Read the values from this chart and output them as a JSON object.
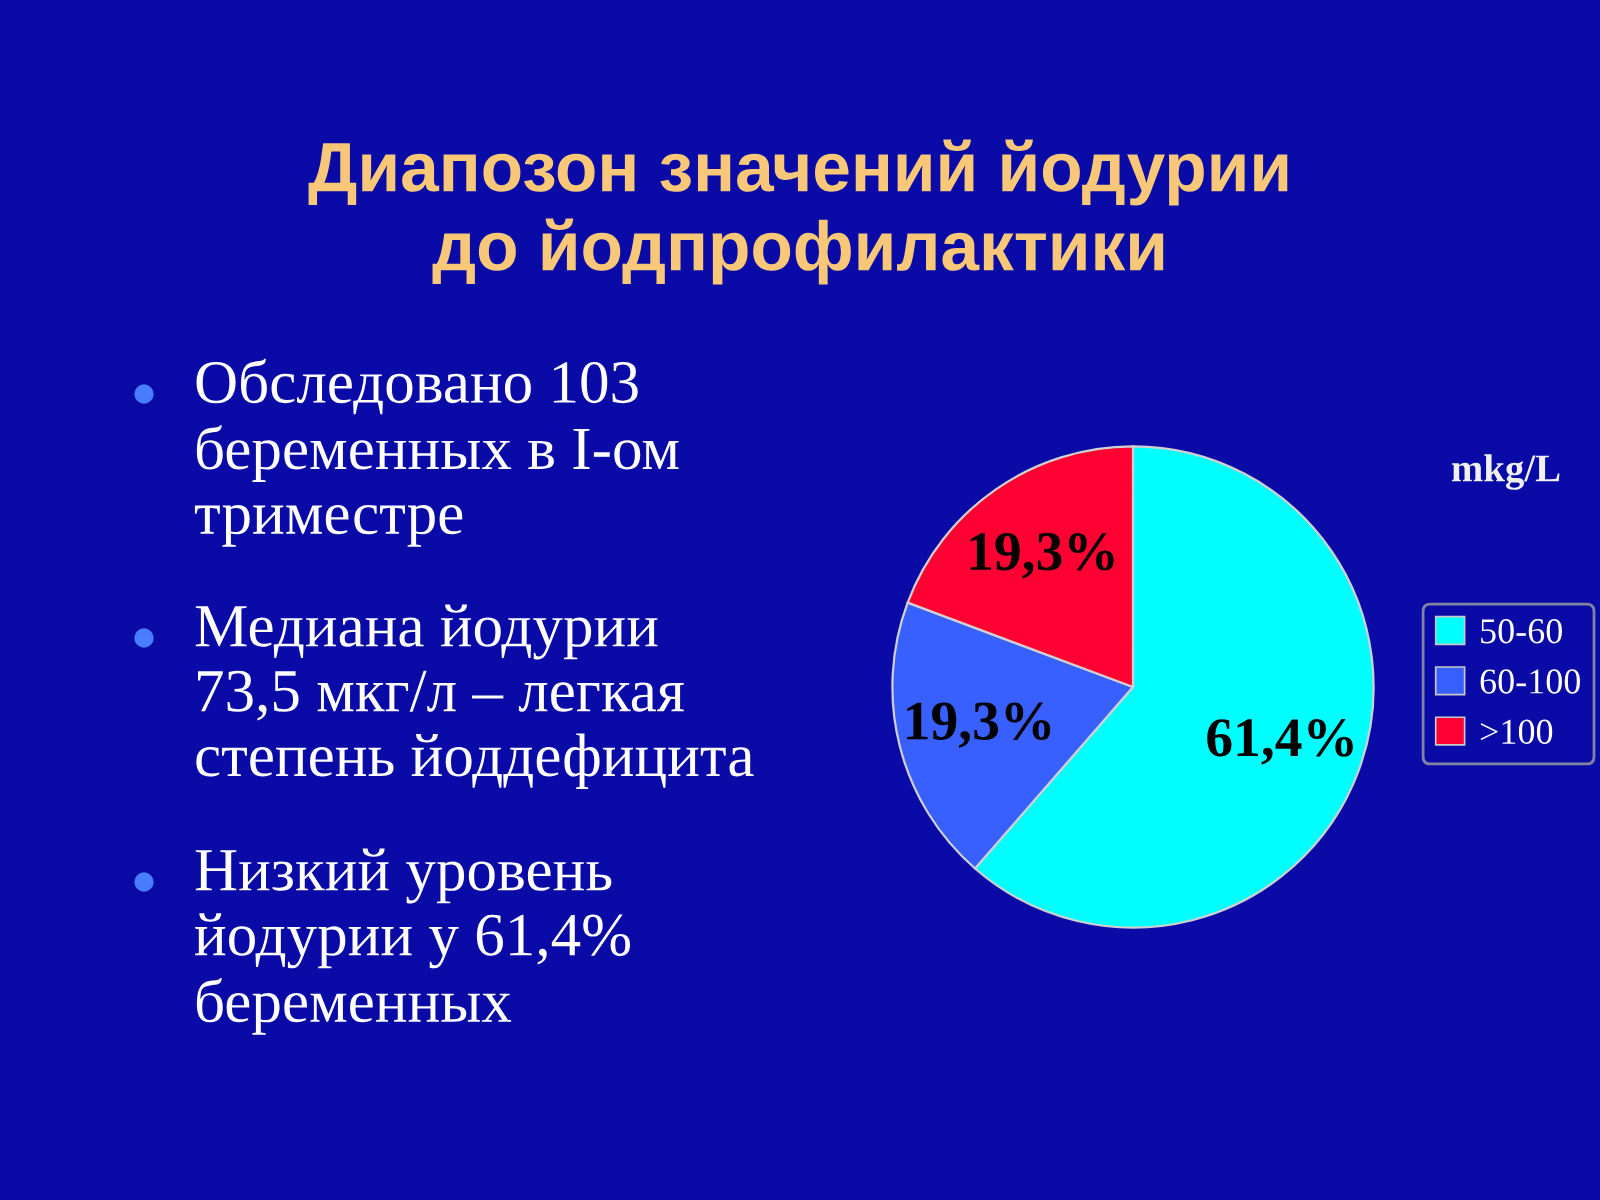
{
  "chart_data": {
    "type": "pie",
    "title": "Диапозон значений йодурии\nдо йодпрофилактики",
    "annotations": [
      "Обследовано 103\nбеременных в I-ом\nтриместре",
      "Медиана йодурии\n73,5 мкг/л – легкая\nстепень йоддефицита",
      "Низкий уровень\nйодурии у 61,4%\nбеременных"
    ],
    "categories": [
      "50-60",
      "60-100",
      ">100"
    ],
    "values": [
      61.4,
      19.3,
      19.3
    ],
    "colors": [
      "#00ffff",
      "#3860ff",
      "#ff0033"
    ],
    "value_labels": [
      "61,4%",
      "19,3%",
      "19,3%"
    ],
    "legend_title": "mkg/L",
    "legend": "right"
  }
}
